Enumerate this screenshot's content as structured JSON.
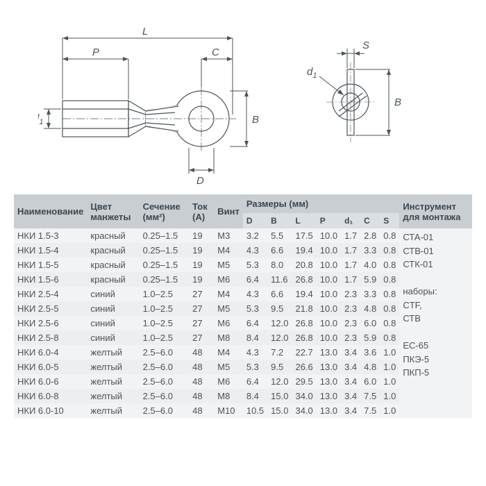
{
  "diagram": {
    "labels": {
      "L": "L",
      "P": "P",
      "C": "C",
      "B": "B",
      "D": "D",
      "d1_left": "d",
      "d1_left_sub": "1",
      "S": "S",
      "d1_right": "d",
      "d1_right_sub": "1",
      "B2": "B"
    }
  },
  "headers": {
    "name": "Наименование",
    "color": "Цвет манжеты",
    "section": "Сечение (мм²)",
    "current": "Ток (А)",
    "screw": "Винт",
    "dims": "Размеры (мм)",
    "D": "D",
    "B": "B",
    "L": "L",
    "P": "P",
    "d1": "d₁",
    "C": "C",
    "S": "S",
    "tool": "Инструмент для монтажа"
  },
  "tools": [
    "СТА-01",
    "СТВ-01",
    "СТК-01",
    "",
    "наборы:",
    "CTF,",
    "СТВ",
    "",
    "EC-65",
    "ПКЭ-5",
    "ПКП-5"
  ],
  "rows": [
    {
      "name": "НКИ 1.5-3",
      "color": "красный",
      "sec": "0.25–1.5",
      "cur": "19",
      "scr": "М3",
      "D": "3.2",
      "B": "5.5",
      "L": "17.5",
      "P": "10.0",
      "d1": "1.7",
      "C": "2.8",
      "S": "0.8"
    },
    {
      "name": "НКИ 1.5-4",
      "color": "красный",
      "sec": "0.25–1.5",
      "cur": "19",
      "scr": "М4",
      "D": "4.3",
      "B": "6.6",
      "L": "19.4",
      "P": "10.0",
      "d1": "1.7",
      "C": "3.3",
      "S": "0.8"
    },
    {
      "name": "НКИ 1.5-5",
      "color": "красный",
      "sec": "0.25–1.5",
      "cur": "19",
      "scr": "М5",
      "D": "5.3",
      "B": "8.0",
      "L": "20.8",
      "P": "10.0",
      "d1": "1.7",
      "C": "4.0",
      "S": "0.8"
    },
    {
      "name": "НКИ 1.5-6",
      "color": "красный",
      "sec": "0.25–1.5",
      "cur": "19",
      "scr": "М6",
      "D": "6.4",
      "B": "11.6",
      "L": "26.8",
      "P": "10.0",
      "d1": "1.7",
      "C": "5.9",
      "S": "0.8"
    },
    {
      "name": "НКИ 2.5-4",
      "color": "синий",
      "sec": "1.0–2.5",
      "cur": "27",
      "scr": "М4",
      "D": "4.3",
      "B": "6.6",
      "L": "19.4",
      "P": "10.0",
      "d1": "2.3",
      "C": "3.3",
      "S": "0.8"
    },
    {
      "name": "НКИ 2.5-5",
      "color": "синий",
      "sec": "1.0–2.5",
      "cur": "27",
      "scr": "М5",
      "D": "5.3",
      "B": "9.5",
      "L": "21.8",
      "P": "10.0",
      "d1": "2.3",
      "C": "4.8",
      "S": "0.8"
    },
    {
      "name": "НКИ 2.5-6",
      "color": "синий",
      "sec": "1.0–2.5",
      "cur": "27",
      "scr": "М6",
      "D": "6.4",
      "B": "12.0",
      "L": "26.8",
      "P": "10.0",
      "d1": "2.3",
      "C": "6.0",
      "S": "0.8"
    },
    {
      "name": "НКИ 2.5-8",
      "color": "синий",
      "sec": "1.0–2.5",
      "cur": "27",
      "scr": "М8",
      "D": "8.4",
      "B": "12.0",
      "L": "26.8",
      "P": "10.0",
      "d1": "2.3",
      "C": "5.9",
      "S": "0.8"
    },
    {
      "name": "НКИ 6.0-4",
      "color": "желтый",
      "sec": "2.5–6.0",
      "cur": "48",
      "scr": "М4",
      "D": "4.3",
      "B": "7.2",
      "L": "22.7",
      "P": "13.0",
      "d1": "3.4",
      "C": "3.6",
      "S": "1.0"
    },
    {
      "name": "НКИ 6.0-5",
      "color": "желтый",
      "sec": "2.5–6.0",
      "cur": "48",
      "scr": "М5",
      "D": "5.3",
      "B": "9.5",
      "L": "26.6",
      "P": "13.0",
      "d1": "3.4",
      "C": "4.8",
      "S": "1.0"
    },
    {
      "name": "НКИ 6.0-6",
      "color": "желтый",
      "sec": "2.5–6.0",
      "cur": "48",
      "scr": "М6",
      "D": "6.4",
      "B": "12.0",
      "L": "29.5",
      "P": "13.0",
      "d1": "3.4",
      "C": "6.0",
      "S": "1.0"
    },
    {
      "name": "НКИ 6.0-8",
      "color": "желтый",
      "sec": "2.5–6.0",
      "cur": "48",
      "scr": "М8",
      "D": "8.4",
      "B": "15.0",
      "L": "34.0",
      "P": "13.0",
      "d1": "3.4",
      "C": "7.5",
      "S": "1.0"
    },
    {
      "name": "НКИ 6.0-10",
      "color": "желтый",
      "sec": "2.5–6.0",
      "cur": "48",
      "scr": "М10",
      "D": "10.5",
      "B": "15.0",
      "L": "34.0",
      "P": "13.0",
      "d1": "3.4",
      "C": "7.5",
      "S": "1.0"
    }
  ]
}
